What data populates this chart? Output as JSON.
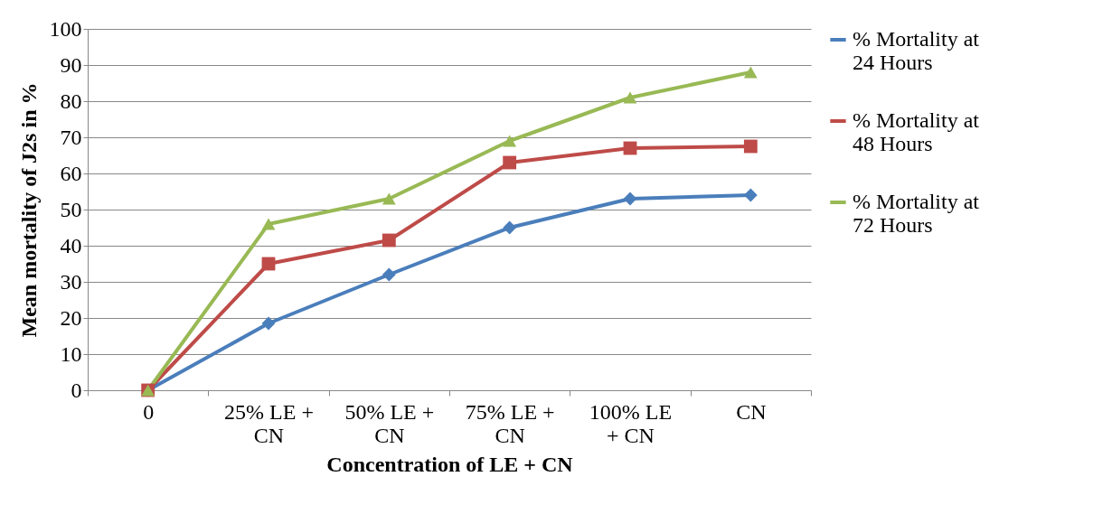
{
  "chart_data": {
    "type": "line",
    "xlabel": "Concentration of LE + CN",
    "ylabel": "Mean mortality of J2s in %",
    "categories": [
      "0",
      "25% LE + CN",
      "50% LE + CN",
      "75% LE + CN",
      "100% LE + CN",
      "CN"
    ],
    "series": [
      {
        "name": "% Mortality at 24 Hours",
        "color": "#4a7ebb",
        "marker": "diamond",
        "values": [
          0,
          18.5,
          32,
          45,
          53,
          54
        ]
      },
      {
        "name": "% Mortality at 48 Hours",
        "color": "#be4b48",
        "marker": "square",
        "values": [
          0,
          35,
          41.5,
          63,
          67,
          67.5
        ]
      },
      {
        "name": "% Mortality at 72 Hours",
        "color": "#98b954",
        "marker": "triangle",
        "values": [
          0,
          46,
          53,
          69,
          81,
          88
        ]
      }
    ],
    "ylim": [
      0,
      100
    ],
    "yticks": [
      0,
      10,
      20,
      30,
      40,
      50,
      60,
      70,
      80,
      90,
      100
    ],
    "grid": "y",
    "legend": "right",
    "line_style": "solid"
  }
}
